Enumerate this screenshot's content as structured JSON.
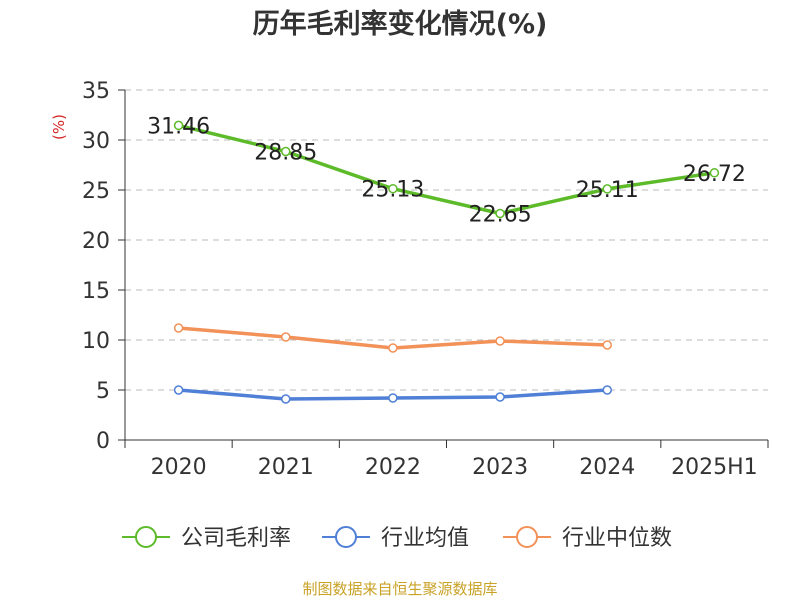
{
  "chart_data": {
    "type": "line",
    "title": "历年毛利率变化情况(%)",
    "ylabel": "(%)",
    "xlabel": "",
    "categories": [
      "2020",
      "2021",
      "2022",
      "2023",
      "2024",
      "2025H1"
    ],
    "ylim": [
      0,
      35
    ],
    "yticks": [
      0,
      5,
      10,
      15,
      20,
      25,
      30,
      35
    ],
    "grid": true,
    "legend_position": "bottom",
    "series": [
      {
        "name": "公司毛利率",
        "color": "#5dbb2a",
        "values": [
          31.46,
          28.85,
          25.13,
          22.65,
          25.11,
          26.72
        ],
        "labels": [
          "31.46",
          "28.85",
          "25.13",
          "22.65",
          "25.11",
          "26.72"
        ]
      },
      {
        "name": "行业均值",
        "color": "#4f7fd6",
        "values": [
          5.0,
          4.1,
          4.2,
          4.3,
          5.0,
          null
        ]
      },
      {
        "name": "行业中位数",
        "color": "#f29158",
        "values": [
          11.2,
          10.3,
          9.2,
          9.9,
          9.5,
          null
        ]
      }
    ]
  },
  "source_text": "制图数据来自恒生聚源数据库"
}
